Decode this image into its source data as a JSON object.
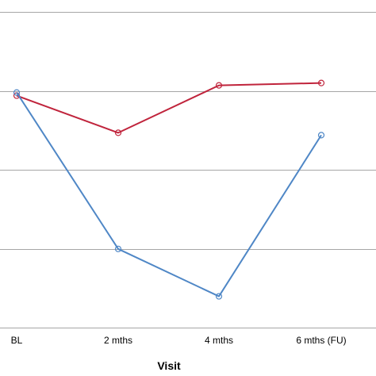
{
  "chart_data": {
    "type": "line",
    "categories": [
      "BL",
      "2 mths",
      "4 mths",
      "6 mths (FU)"
    ],
    "xlabel": "Visit",
    "ylabel": "",
    "ylim": [
      0,
      5
    ],
    "grid": true,
    "gridlines": [
      1,
      2,
      3,
      4,
      5
    ],
    "series": [
      {
        "color": "#c0243c",
        "values": [
          3.94,
          3.47,
          4.07,
          4.1
        ]
      },
      {
        "color": "#4f87c6",
        "values": [
          3.98,
          2.0,
          1.4,
          3.44
        ]
      }
    ]
  }
}
